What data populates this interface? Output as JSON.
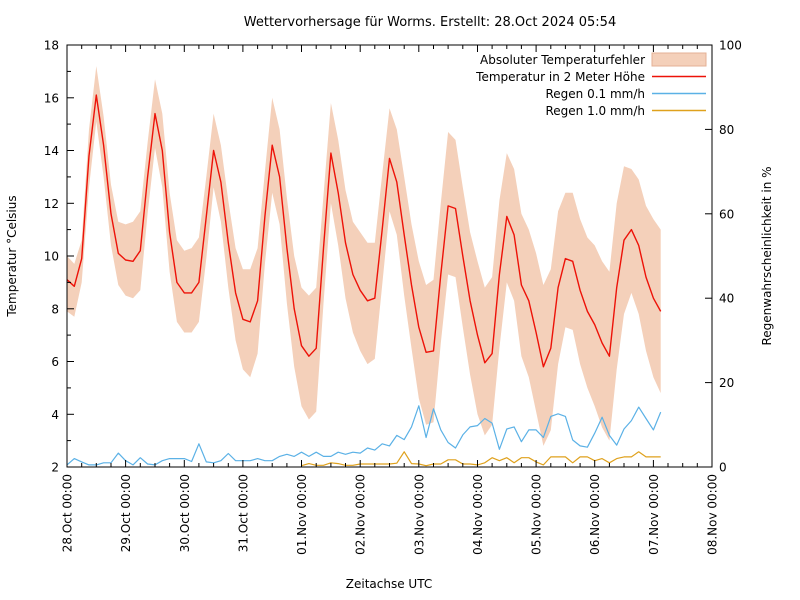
{
  "chart_data": {
    "type": "line",
    "title": "Wettervorhersage für Worms. Erstellt: 28.Oct 2024 05:54",
    "xlabel": "Zeitachse UTC",
    "ylabel_left": "Temperatur °Celsius",
    "ylabel_right": "Regenwahrscheinlichkeit in %",
    "grid": false,
    "legend_position": "top-right-inside",
    "x_axis": {
      "tick_labels": [
        "28.Oct 00:00",
        "29.Oct 00:00",
        "30.Oct 00:00",
        "31.Oct 00:00",
        "01.Nov 00:00",
        "02.Nov 00:00",
        "03.Nov 00:00",
        "04.Nov 00:00",
        "05.Nov 00:00",
        "06.Nov 00:00",
        "07.Nov 00:00",
        "08.Nov 00:00"
      ],
      "days_span": 11,
      "minor_ticks_per_day": 4
    },
    "y_left": {
      "min": 2,
      "max": 18,
      "major_step": 2,
      "minor_step": 1,
      "tick_labels": [
        "2",
        "4",
        "6",
        "8",
        "10",
        "12",
        "14",
        "16",
        "18"
      ]
    },
    "y_right": {
      "min": 0,
      "max": 100,
      "major_step": 20,
      "tick_labels": [
        "0",
        "20",
        "40",
        "60",
        "80",
        "100"
      ]
    },
    "legend": [
      {
        "label": "Absoluter Temperaturfehler",
        "type": "band",
        "color": "#f4d0ba",
        "edge": "#e4b195"
      },
      {
        "label": "Temperatur in 2 Meter Höhe",
        "type": "line",
        "color": "#ed1208"
      },
      {
        "label": "Regen 0.1 mm/h",
        "type": "line",
        "color": "#5bb1e6"
      },
      {
        "label": "Regen 1.0 mm/h",
        "type": "line",
        "color": "#dfa11c"
      }
    ],
    "series": {
      "t_start_day": 0,
      "t_step_days": 0.125,
      "temperature_c": [
        9.1,
        8.85,
        9.9,
        13.8,
        16.1,
        14.2,
        11.6,
        10.1,
        9.85,
        9.8,
        10.2,
        13.0,
        15.4,
        14.0,
        10.9,
        9.0,
        8.6,
        8.6,
        9.0,
        11.5,
        14.0,
        12.8,
        10.5,
        8.6,
        7.6,
        7.5,
        8.3,
        11.5,
        14.2,
        13.0,
        10.3,
        8.0,
        6.6,
        6.2,
        6.5,
        10.3,
        13.9,
        12.4,
        10.5,
        9.3,
        8.7,
        8.3,
        8.4,
        11.0,
        13.7,
        12.8,
        10.8,
        8.9,
        7.3,
        6.35,
        6.4,
        9.3,
        11.9,
        11.8,
        10.0,
        8.3,
        7.0,
        5.95,
        6.3,
        9.3,
        11.5,
        10.8,
        8.9,
        8.3,
        7.1,
        5.8,
        6.5,
        8.8,
        9.9,
        9.8,
        8.7,
        7.9,
        7.4,
        6.7,
        6.2,
        8.8,
        10.6,
        11.0,
        10.4,
        9.2,
        8.4,
        7.9
      ],
      "error_upper_c": [
        10.0,
        9.7,
        10.6,
        14.8,
        17.2,
        15.3,
        12.7,
        11.3,
        11.2,
        11.3,
        11.7,
        14.3,
        16.7,
        15.4,
        12.4,
        10.6,
        10.2,
        10.3,
        10.7,
        13.0,
        15.4,
        14.2,
        12.1,
        10.3,
        9.5,
        9.5,
        10.3,
        13.2,
        16.0,
        14.8,
        12.2,
        10.0,
        8.8,
        8.5,
        8.8,
        12.3,
        15.8,
        14.4,
        12.5,
        11.3,
        10.9,
        10.5,
        10.5,
        13.1,
        15.6,
        14.8,
        13.0,
        11.2,
        9.8,
        8.9,
        9.1,
        12.0,
        14.7,
        14.4,
        12.6,
        10.9,
        9.8,
        8.8,
        9.2,
        12.1,
        13.9,
        13.3,
        11.6,
        11.0,
        10.1,
        8.9,
        9.5,
        11.7,
        12.4,
        12.4,
        11.4,
        10.7,
        10.4,
        9.8,
        9.4,
        12.0,
        13.4,
        13.3,
        12.9,
        11.9,
        11.4,
        11.0
      ],
      "error_lower_c": [
        7.9,
        7.7,
        9.0,
        12.6,
        15.1,
        13.0,
        10.4,
        8.9,
        8.5,
        8.4,
        8.7,
        11.6,
        14.1,
        12.6,
        9.4,
        7.5,
        7.1,
        7.1,
        7.5,
        9.9,
        12.6,
        11.3,
        8.8,
        6.8,
        5.7,
        5.4,
        6.3,
        9.7,
        12.4,
        11.2,
        8.2,
        5.8,
        4.3,
        3.8,
        4.1,
        8.2,
        12.0,
        10.4,
        8.4,
        7.1,
        6.4,
        5.9,
        6.1,
        8.9,
        11.7,
        10.8,
        8.5,
        6.5,
        4.6,
        3.6,
        3.7,
        6.7,
        9.3,
        9.2,
        7.3,
        5.5,
        4.0,
        3.2,
        3.6,
        6.5,
        9.0,
        8.3,
        6.2,
        5.4,
        4.1,
        2.8,
        3.4,
        5.9,
        7.3,
        7.2,
        5.9,
        5.0,
        4.3,
        3.5,
        3.0,
        5.7,
        7.8,
        8.6,
        7.8,
        6.4,
        5.4,
        4.8
      ],
      "rain_01_pct": [
        0.5,
        2.0,
        1.2,
        0.5,
        0.5,
        1.0,
        1.0,
        3.3,
        1.5,
        0.5,
        2.2,
        0.7,
        0.5,
        1.5,
        2.0,
        2.0,
        2.0,
        1.3,
        5.5,
        1.2,
        1.0,
        1.5,
        3.2,
        1.5,
        1.5,
        1.5,
        2.0,
        1.5,
        1.5,
        2.5,
        3.0,
        2.5,
        3.5,
        2.5,
        3.5,
        2.5,
        2.5,
        3.5,
        3.0,
        3.5,
        3.3,
        4.5,
        4.0,
        5.5,
        5.0,
        7.5,
        6.5,
        9.5,
        14.5,
        7.0,
        13.8,
        8.8,
        5.8,
        4.5,
        7.6,
        9.5,
        9.8,
        11.5,
        10.4,
        4.2,
        9.0,
        9.5,
        6.0,
        8.8,
        8.8,
        7.0,
        12.0,
        12.6,
        12.0,
        6.4,
        5.0,
        4.7,
        8.0,
        11.8,
        7.5,
        5.2,
        9.0,
        11.0,
        14.2,
        11.5,
        8.8,
        13.0
      ],
      "rain_10_start_day": 4.0,
      "rain_10_pct": [
        0.3,
        0.8,
        0.4,
        0.4,
        1.0,
        0.8,
        0.4,
        0.4,
        0.7,
        0.7,
        0.7,
        0.7,
        0.7,
        0.9,
        3.6,
        0.8,
        0.7,
        0.3,
        0.7,
        0.7,
        1.7,
        1.7,
        0.7,
        0.7,
        0.5,
        1.0,
        2.2,
        1.5,
        2.2,
        1.0,
        2.2,
        2.2,
        1.2,
        0.5,
        2.4,
        2.4,
        2.4,
        1.0,
        2.4,
        2.4,
        1.5,
        2.0,
        1.0,
        2.0,
        2.4,
        2.4,
        3.6,
        2.4,
        2.4,
        2.4
      ]
    }
  }
}
